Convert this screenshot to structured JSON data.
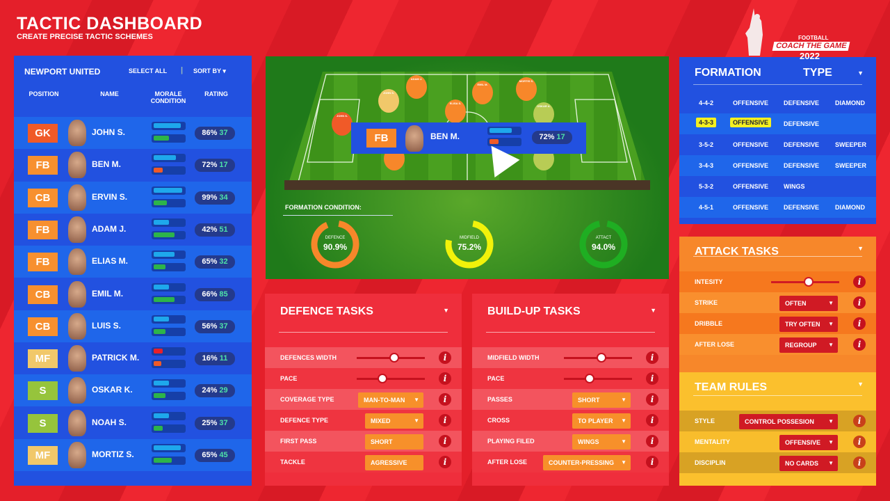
{
  "header": {
    "title": "TACTIC DASHBOARD",
    "subtitle": "CREATE PRECISE TACTIC SCHEMES"
  },
  "logo": {
    "top": "FOOTBALL",
    "main": "COACH THE GAME",
    "year": "2022"
  },
  "colors": {
    "blue": "#2251e0",
    "blue_alt": "#1f66ea",
    "red": "#e41f2a",
    "orange": "#f7872a",
    "yellow": "#fbc02d",
    "green": "#2db44a",
    "gk": "#f05a28",
    "fb": "#f7902f",
    "mf": "#f1c86a",
    "s": "#96c43c"
  },
  "roster": {
    "team": "NEWPORT UNITED",
    "select_all": "SELECT ALL",
    "sort_by": "SORT BY",
    "columns": [
      "POSITION",
      "NAME",
      "MORALE CONDITION",
      "RATING"
    ],
    "players": [
      {
        "pos": "GK",
        "name": "JOHN S.",
        "morale": 90,
        "condition": 50,
        "cond_color": "green",
        "pct": "86%",
        "num": "37"
      },
      {
        "pos": "FB",
        "name": "BEN M.",
        "morale": 75,
        "condition": 30,
        "cond_color": "orange",
        "pct": "72%",
        "num": "17"
      },
      {
        "pos": "CB",
        "name": "ERVIN S.",
        "morale": 95,
        "condition": 45,
        "cond_color": "green",
        "pct": "99%",
        "num": "34"
      },
      {
        "pos": "FB",
        "name": "ADAM J.",
        "morale": 50,
        "condition": 70,
        "cond_color": "green",
        "pct": "42%",
        "num": "51"
      },
      {
        "pos": "FB",
        "name": "ELIAS M.",
        "morale": 70,
        "condition": 40,
        "cond_color": "green",
        "pct": "65%",
        "num": "32"
      },
      {
        "pos": "CB",
        "name": "EMIL M.",
        "morale": 50,
        "condition": 70,
        "cond_color": "green",
        "pct": "66%",
        "num": "85"
      },
      {
        "pos": "CB",
        "name": "LUIS S.",
        "morale": 50,
        "condition": 40,
        "cond_color": "green",
        "pct": "56%",
        "num": "37"
      },
      {
        "pos": "MF",
        "name": "PATRICK M.",
        "morale": 30,
        "condition": 25,
        "cond_color": "orange",
        "pct": "16%",
        "num": "11",
        "morale_color": "red"
      },
      {
        "pos": "S",
        "name": "OSKAR K.",
        "morale": 50,
        "condition": 40,
        "cond_color": "green",
        "pct": "24%",
        "num": "29"
      },
      {
        "pos": "S",
        "name": "NOAH S.",
        "morale": 50,
        "condition": 30,
        "cond_color": "green",
        "pct": "25%",
        "num": "37"
      },
      {
        "pos": "MF",
        "name": "MORTIZ S.",
        "morale": 90,
        "condition": 60,
        "cond_color": "green",
        "pct": "65%",
        "num": "45"
      }
    ]
  },
  "pitch": {
    "labels": [
      "JOHN S.",
      "JOHN S.",
      "ADAM J.",
      "EMIL M.",
      "MORTIS S.",
      "ELISA S.",
      "OSKAR A."
    ],
    "popup": {
      "pos": "FB",
      "name": "BEN M.",
      "pct": "72%",
      "num": "17",
      "morale": 75,
      "condition": 30
    },
    "condition_title": "FORMATION CONDITION:",
    "conditions": [
      {
        "label": "DEFENCE",
        "value": "90.9%",
        "fraction": 0.909,
        "color": "#f7872a"
      },
      {
        "label": "MIDFIELD",
        "value": "75.2%",
        "fraction": 0.752,
        "color": "#f2f20a"
      },
      {
        "label": "ATTACT",
        "value": "94.0%",
        "fraction": 0.94,
        "color": "#1fae22"
      }
    ]
  },
  "formation": {
    "title": "FORMATION",
    "type": "TYPE",
    "selected": "4-3-3",
    "rows": [
      [
        "4-4-2",
        "OFFENSIVE",
        "DEFENSIVE",
        "DIAMOND"
      ],
      [
        "4-3-3",
        "OFFENSIVE",
        "DEFENSIVE",
        ""
      ],
      [
        "3-5-2",
        "OFFENSIVE",
        "DEFENSIVE",
        "SWEEPER"
      ],
      [
        "3-4-3",
        "OFFENSIVE",
        "DEFENSIVE",
        "SWEEPER"
      ],
      [
        "5-3-2",
        "OFFENSIVE",
        "WINGS",
        ""
      ],
      [
        "4-5-1",
        "OFFENSIVE",
        "DEFENSIVE",
        "DIAMOND"
      ]
    ]
  },
  "defence": {
    "title": "DEFENCE TASKS",
    "rows": [
      {
        "label": "DEFENCES WIDTH",
        "slider": 0.55
      },
      {
        "label": "PACE",
        "slider": 0.38
      },
      {
        "label": "COVERAGE TYPE",
        "value": "MAN-TO-MAN",
        "dropdown": true
      },
      {
        "label": "DEFENCE TYPE",
        "value": "MIXED",
        "dropdown": true
      },
      {
        "label": "FIRST PASS",
        "value": "SHORT"
      },
      {
        "label": "TACKLE",
        "value": "AGRESSIVE"
      }
    ]
  },
  "buildup": {
    "title": "BUILD-UP TASKS",
    "rows": [
      {
        "label": "MIDFIELD WIDTH",
        "slider": 0.55
      },
      {
        "label": "PACE",
        "slider": 0.38
      },
      {
        "label": "PASSES",
        "value": "SHORT",
        "dropdown": true
      },
      {
        "label": "CROSS",
        "value": "TO PLAYER",
        "dropdown": true
      },
      {
        "label": "PLAYING FILED",
        "value": "WINGS",
        "dropdown": true
      },
      {
        "label": "AFTER LOSE",
        "value": "COUNTER-PRESSING",
        "dropdown": true
      }
    ]
  },
  "attack": {
    "title": "ATTACK TASKS",
    "rows": [
      {
        "label": "INTESITY",
        "slider": 0.55
      },
      {
        "label": "STRIKE",
        "value": "OFTEN",
        "dropdown": true
      },
      {
        "label": "DRIBBLE",
        "value": "TRY OFTEN",
        "dropdown": true
      },
      {
        "label": "AFTER LOSE",
        "value": "REGROUP",
        "dropdown": true
      }
    ]
  },
  "team_rules": {
    "title": "TEAM RULES",
    "rows": [
      {
        "label": "STYLE",
        "value": "CONTROL  POSSESION",
        "dropdown": true
      },
      {
        "label": "MENTALITY",
        "value": "OFFENSIVE",
        "dropdown": true
      },
      {
        "label": "DISCIPLIN",
        "value": "NO CARDS",
        "dropdown": true
      }
    ]
  }
}
